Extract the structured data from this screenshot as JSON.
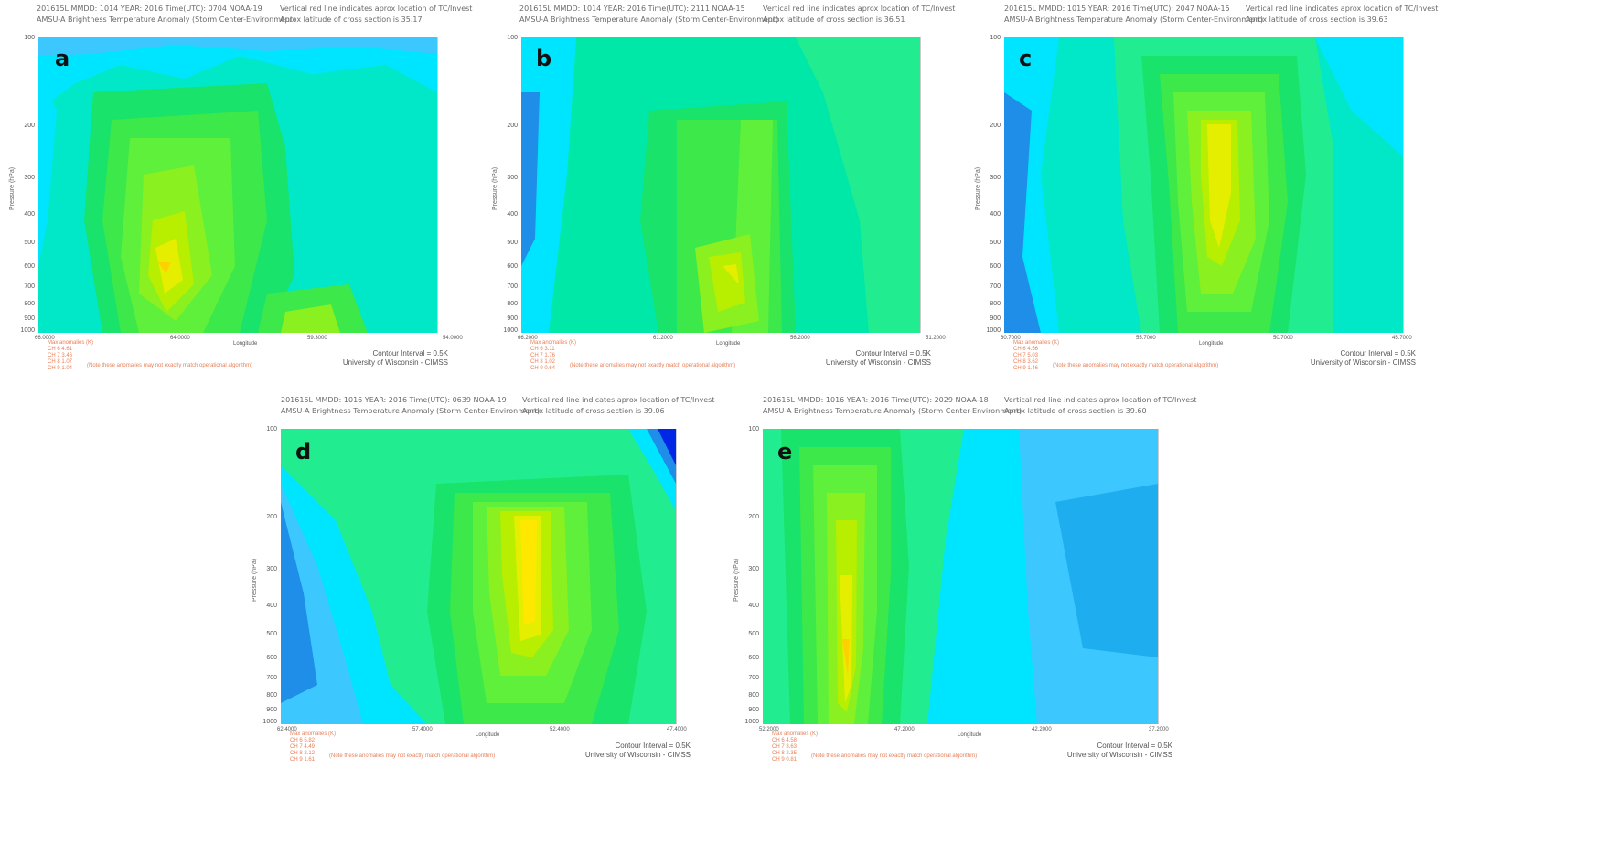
{
  "common": {
    "ylabel": "Pressure (hPa)",
    "xlabel": "Longitude",
    "yticks": [
      "100",
      "200",
      "300",
      "400",
      "500",
      "600",
      "700",
      "800",
      "900",
      "1000"
    ],
    "contour_interval": "Contour Interval = 0.5K",
    "university": "University of Wisconsin - CIMSS",
    "max_anomalies_label": "Max anomalies (K)",
    "note": "(Note these anomalies may not exactly match operational algorithm)",
    "ch_labels": [
      "CH 6",
      "CH 7",
      "CH 8",
      "CH 9"
    ]
  },
  "panels": [
    {
      "letter": "a",
      "header_left_1": "201615L  MMDD: 1014 YEAR: 2016 Time(UTC): 0704 NOAA-19",
      "header_left_2": "AMSU-A Brightness Temperature Anomaly (Storm Center-Environment)",
      "header_right_1": "Vertical red line indicates aprox location of TC/Invest",
      "header_right_2": "Aprox latitude of cross section is 35.17",
      "xticks": [
        "66.0000",
        "64.0000",
        "59.3000",
        "54.0000"
      ],
      "max_values": [
        "4.61",
        "3.46",
        "1.07",
        "1.04"
      ]
    },
    {
      "letter": "b",
      "header_left_1": "201615L  MMDD: 1014 YEAR: 2016 Time(UTC): 2111 NOAA-15",
      "header_left_2": "AMSU-A Brightness Temperature Anomaly (Storm Center-Environment)",
      "header_right_1": "Vertical red line indicates aprox location of TC/Invest",
      "header_right_2": "Aprox latitude of cross section is 36.51",
      "xticks": [
        "66.2000",
        "61.2000",
        "56.2000",
        "51.2000"
      ],
      "max_values": [
        "3.11",
        "1.76",
        "1.02",
        "0.64"
      ]
    },
    {
      "letter": "c",
      "header_left_1": "201615L  MMDD: 1015 YEAR: 2016 Time(UTC): 2047 NOAA-15",
      "header_left_2": "AMSU-A Brightness Temperature Anomaly (Storm Center-Environment)",
      "header_right_1": "Vertical red line indicates aprox location of TC/Invest",
      "header_right_2": "Aprox latitude of cross section is 39.63",
      "xticks": [
        "60.7000",
        "55.7000",
        "50.7000",
        "45.7000"
      ],
      "max_values": [
        "4.56",
        "5.03",
        "3.62",
        "1.46"
      ]
    },
    {
      "letter": "d",
      "header_left_1": "201615L  MMDD: 1016 YEAR: 2016 Time(UTC): 0639 NOAA-19",
      "header_left_2": "AMSU-A Brightness Temperature Anomaly (Storm Center-Environment)",
      "header_right_1": "Vertical red line indicates aprox location of TC/Invest",
      "header_right_2": "Aprox latitude of cross section is 39.06",
      "xticks": [
        "62.4000",
        "57.4000",
        "52.4000",
        "47.4000"
      ],
      "max_values": [
        "5.82",
        "4.49",
        "2.12",
        "1.61"
      ]
    },
    {
      "letter": "e",
      "header_left_1": "201615L  MMDD: 1016 YEAR: 2016 Time(UTC): 2029 NOAA-18",
      "header_left_2": "AMSU-A Brightness Temperature Anomaly (Storm Center-Environment)",
      "header_right_1": "Vertical red line indicates aprox location of TC/Invest",
      "header_right_2": "Aprox latitude of cross section is 39.60",
      "xticks": [
        "52.2000",
        "47.2000",
        "42.2000",
        "37.2000"
      ],
      "max_values": [
        "4.58",
        "3.63",
        "2.35",
        "0.81"
      ]
    }
  ],
  "chart_data": [
    {
      "type": "heatmap",
      "panel": "a",
      "ylabel": "Pressure (hPa)",
      "xlabel": "Longitude",
      "colors": {
        "cold": "#1e6fe0",
        "cool": "#00e5ff",
        "mid": "#26f05a",
        "warm": "#c8f000",
        "hot": "#ffef00"
      }
    },
    {
      "type": "heatmap",
      "panel": "b",
      "ylabel": "Pressure (hPa)",
      "xlabel": "Longitude"
    },
    {
      "type": "heatmap",
      "panel": "c",
      "ylabel": "Pressure (hPa)",
      "xlabel": "Longitude"
    },
    {
      "type": "heatmap",
      "panel": "d",
      "ylabel": "Pressure (hPa)",
      "xlabel": "Longitude"
    },
    {
      "type": "heatmap",
      "panel": "e",
      "ylabel": "Pressure (hPa)",
      "xlabel": "Longitude"
    }
  ]
}
